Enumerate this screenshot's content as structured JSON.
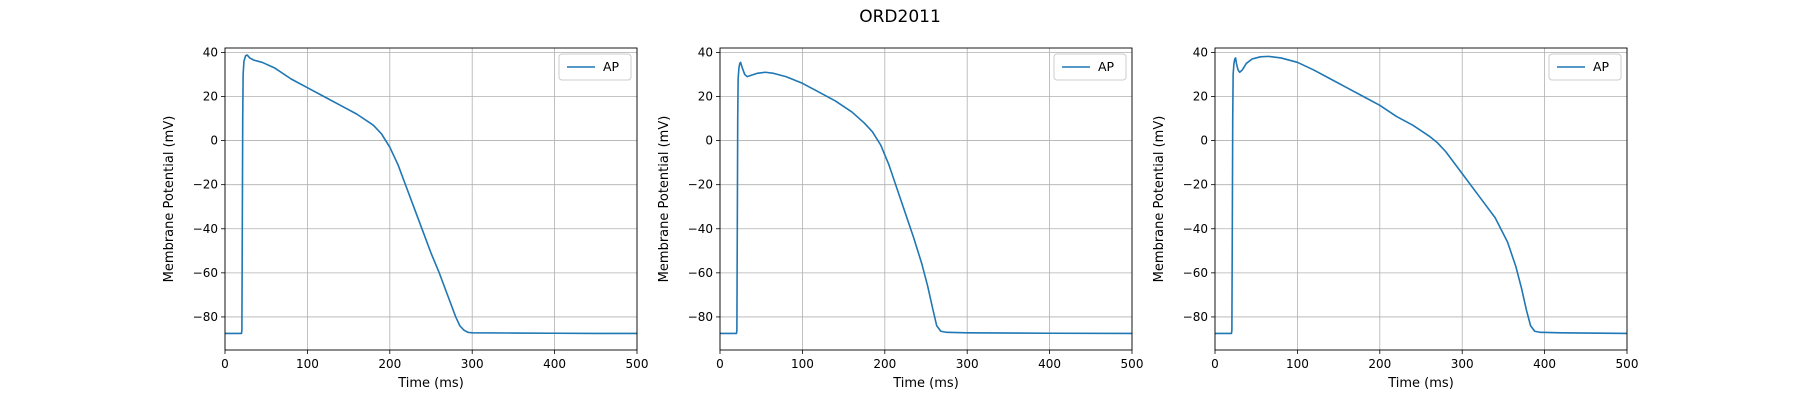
{
  "figure": {
    "title": "ORD2011"
  },
  "chart_data": [
    {
      "type": "line",
      "title": "",
      "xlabel": "Time (ms)",
      "ylabel": "Membrane Potential (mV)",
      "xlim": [
        0,
        500
      ],
      "ylim": [
        -95,
        42
      ],
      "xticks": [
        0,
        100,
        200,
        300,
        400,
        500
      ],
      "yticks": [
        -80,
        -60,
        -40,
        -20,
        0,
        20,
        40
      ],
      "grid": true,
      "legend": "top-right",
      "series": [
        {
          "name": "AP",
          "color": "#1f77b4",
          "points": [
            [
              0,
              -87.5
            ],
            [
              20,
              -87.5
            ],
            [
              20.5,
              -86
            ],
            [
              21,
              -40
            ],
            [
              21.5,
              10
            ],
            [
              22,
              30
            ],
            [
              23,
              36
            ],
            [
              25,
              38.5
            ],
            [
              27,
              38.8
            ],
            [
              30,
              37.5
            ],
            [
              35,
              36.5
            ],
            [
              45,
              35.5
            ],
            [
              60,
              33
            ],
            [
              80,
              28
            ],
            [
              100,
              24
            ],
            [
              120,
              20
            ],
            [
              140,
              16
            ],
            [
              160,
              12
            ],
            [
              180,
              7
            ],
            [
              190,
              3
            ],
            [
              200,
              -3
            ],
            [
              210,
              -11
            ],
            [
              220,
              -21
            ],
            [
              230,
              -31
            ],
            [
              240,
              -41
            ],
            [
              250,
              -51
            ],
            [
              260,
              -60
            ],
            [
              270,
              -70
            ],
            [
              280,
              -80
            ],
            [
              285,
              -84
            ],
            [
              290,
              -86
            ],
            [
              295,
              -87
            ],
            [
              300,
              -87.2
            ],
            [
              350,
              -87.3
            ],
            [
              400,
              -87.4
            ],
            [
              450,
              -87.5
            ],
            [
              500,
              -87.5
            ]
          ]
        }
      ]
    },
    {
      "type": "line",
      "title": "",
      "xlabel": "Time (ms)",
      "ylabel": "Membrane Potential (mV)",
      "xlim": [
        0,
        500
      ],
      "ylim": [
        -95,
        42
      ],
      "xticks": [
        0,
        100,
        200,
        300,
        400,
        500
      ],
      "yticks": [
        -80,
        -60,
        -40,
        -20,
        0,
        20,
        40
      ],
      "grid": true,
      "legend": "top-right",
      "series": [
        {
          "name": "AP",
          "color": "#1f77b4",
          "points": [
            [
              0,
              -87.5
            ],
            [
              20,
              -87.5
            ],
            [
              20.5,
              -86
            ],
            [
              21,
              -40
            ],
            [
              21.5,
              10
            ],
            [
              22,
              28
            ],
            [
              23,
              33
            ],
            [
              24,
              35
            ],
            [
              25,
              35.5
            ],
            [
              27,
              33
            ],
            [
              30,
              30
            ],
            [
              33,
              29
            ],
            [
              37,
              29.5
            ],
            [
              45,
              30.5
            ],
            [
              55,
              31
            ],
            [
              65,
              30.5
            ],
            [
              80,
              29
            ],
            [
              100,
              26
            ],
            [
              120,
              22
            ],
            [
              140,
              18
            ],
            [
              160,
              13
            ],
            [
              175,
              8
            ],
            [
              185,
              4
            ],
            [
              195,
              -2
            ],
            [
              205,
              -11
            ],
            [
              215,
              -22
            ],
            [
              225,
              -33
            ],
            [
              235,
              -44
            ],
            [
              245,
              -56
            ],
            [
              252,
              -66
            ],
            [
              258,
              -76
            ],
            [
              263,
              -84
            ],
            [
              268,
              -86.5
            ],
            [
              275,
              -87
            ],
            [
              300,
              -87.2
            ],
            [
              400,
              -87.4
            ],
            [
              500,
              -87.5
            ]
          ]
        }
      ]
    },
    {
      "type": "line",
      "title": "",
      "xlabel": "Time (ms)",
      "ylabel": "Membrane Potential (mV)",
      "xlim": [
        0,
        500
      ],
      "ylim": [
        -95,
        42
      ],
      "xticks": [
        0,
        100,
        200,
        300,
        400,
        500
      ],
      "yticks": [
        -80,
        -60,
        -40,
        -20,
        0,
        20,
        40
      ],
      "grid": true,
      "legend": "top-right",
      "series": [
        {
          "name": "AP",
          "color": "#1f77b4",
          "points": [
            [
              0,
              -87.5
            ],
            [
              20,
              -87.5
            ],
            [
              20.5,
              -86
            ],
            [
              21,
              -40
            ],
            [
              21.5,
              10
            ],
            [
              22,
              30
            ],
            [
              23,
              35
            ],
            [
              24,
              37
            ],
            [
              25,
              37.5
            ],
            [
              26,
              35
            ],
            [
              28,
              32
            ],
            [
              30,
              31
            ],
            [
              33,
              32
            ],
            [
              38,
              35
            ],
            [
              45,
              37
            ],
            [
              55,
              38
            ],
            [
              65,
              38.2
            ],
            [
              80,
              37.5
            ],
            [
              100,
              35.5
            ],
            [
              120,
              32
            ],
            [
              140,
              28
            ],
            [
              160,
              24
            ],
            [
              180,
              20
            ],
            [
              200,
              16
            ],
            [
              220,
              11
            ],
            [
              240,
              7
            ],
            [
              260,
              2
            ],
            [
              270,
              -1
            ],
            [
              280,
              -5
            ],
            [
              290,
              -10
            ],
            [
              300,
              -15
            ],
            [
              320,
              -25
            ],
            [
              340,
              -35
            ],
            [
              355,
              -46
            ],
            [
              365,
              -57
            ],
            [
              372,
              -67
            ],
            [
              378,
              -77
            ],
            [
              383,
              -84
            ],
            [
              388,
              -86.5
            ],
            [
              395,
              -87
            ],
            [
              420,
              -87.2
            ],
            [
              500,
              -87.5
            ]
          ]
        }
      ]
    }
  ]
}
